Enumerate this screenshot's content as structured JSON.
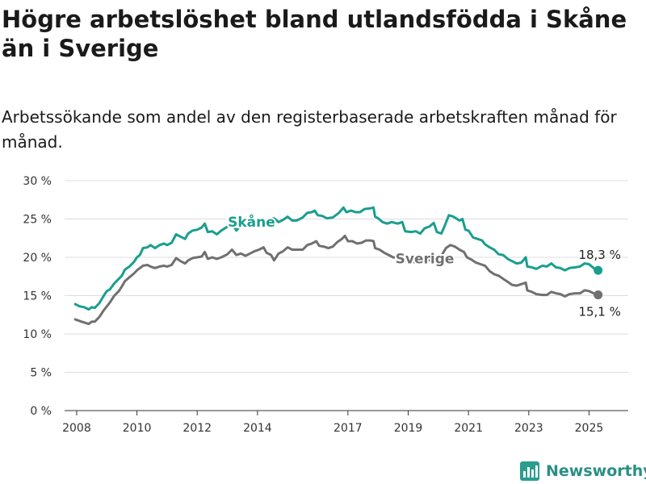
{
  "header": {
    "title": "Högre arbetslöshet bland utlandsfödda i Skåne än i Sverige",
    "subtitle": "Arbetssökande som andel av den registerbaserade arbetskraften månad för månad."
  },
  "brand": {
    "name": "Newsworthy",
    "icon": "bar-chart-icon",
    "color": "#2a8f84"
  },
  "chart_data": {
    "type": "line",
    "title": "Högre arbetslöshet bland utlandsfödda i Skåne än i Sverige",
    "subtitle": "Arbetssökande som andel av den registerbaserade arbetskraften månad för månad.",
    "xlabel": "",
    "ylabel": "",
    "xlim": [
      2007.6,
      2026.3
    ],
    "ylim": [
      0,
      30
    ],
    "x_ticks": [
      2008,
      2010,
      2012,
      2014,
      2017,
      2019,
      2021,
      2023,
      2025
    ],
    "y_ticks": [
      {
        "value": 0,
        "label": "0 %"
      },
      {
        "value": 5,
        "label": "5 %"
      },
      {
        "value": 10,
        "label": "10 %"
      },
      {
        "value": 15,
        "label": "15 %"
      },
      {
        "value": 20,
        "label": "20 %"
      },
      {
        "value": 25,
        "label": "25 %"
      },
      {
        "value": 30,
        "label": "30 %"
      }
    ],
    "grid": "horizontal",
    "series": [
      {
        "name": "Skåne",
        "color": "#1a9e8f",
        "end_label": "18,3 %",
        "points": [
          [
            2007.95,
            13.9
          ],
          [
            2008.1,
            13.6
          ],
          [
            2008.25,
            13.5
          ],
          [
            2008.4,
            13.2
          ],
          [
            2008.5,
            13.5
          ],
          [
            2008.6,
            13.4
          ],
          [
            2008.75,
            14.0
          ],
          [
            2008.9,
            15.0
          ],
          [
            2009.0,
            15.6
          ],
          [
            2009.1,
            15.8
          ],
          [
            2009.25,
            16.6
          ],
          [
            2009.4,
            17.2
          ],
          [
            2009.5,
            17.6
          ],
          [
            2009.6,
            18.4
          ],
          [
            2009.75,
            18.8
          ],
          [
            2009.9,
            19.4
          ],
          [
            2010.0,
            20.0
          ],
          [
            2010.1,
            20.3
          ],
          [
            2010.2,
            21.2
          ],
          [
            2010.35,
            21.3
          ],
          [
            2010.45,
            21.6
          ],
          [
            2010.6,
            21.2
          ],
          [
            2010.75,
            21.6
          ],
          [
            2010.9,
            21.8
          ],
          [
            2011.0,
            21.6
          ],
          [
            2011.15,
            21.9
          ],
          [
            2011.3,
            23.0
          ],
          [
            2011.45,
            22.7
          ],
          [
            2011.6,
            22.4
          ],
          [
            2011.7,
            23.1
          ],
          [
            2011.85,
            23.5
          ],
          [
            2012.0,
            23.6
          ],
          [
            2012.15,
            23.9
          ],
          [
            2012.25,
            24.4
          ],
          [
            2012.35,
            23.3
          ],
          [
            2012.5,
            23.4
          ],
          [
            2012.65,
            23.0
          ],
          [
            2012.8,
            23.5
          ],
          [
            2013.0,
            24.0
          ],
          [
            2013.15,
            24.4
          ],
          [
            2013.3,
            23.5
          ],
          [
            2013.4,
            24.0
          ],
          [
            2013.5,
            24.4
          ],
          [
            2013.6,
            24.2
          ],
          [
            2013.75,
            24.1
          ],
          [
            2013.9,
            24.8
          ],
          [
            2014.05,
            25.0
          ],
          [
            2014.2,
            24.6
          ],
          [
            2014.35,
            24.9
          ],
          [
            2014.55,
            25.1
          ],
          [
            2014.7,
            24.6
          ],
          [
            2014.85,
            24.9
          ],
          [
            2015.0,
            25.3
          ],
          [
            2015.15,
            24.8
          ],
          [
            2015.3,
            24.8
          ],
          [
            2015.5,
            25.2
          ],
          [
            2015.65,
            25.8
          ],
          [
            2015.8,
            25.9
          ],
          [
            2015.9,
            26.1
          ],
          [
            2016.0,
            25.5
          ],
          [
            2016.15,
            25.4
          ],
          [
            2016.3,
            25.1
          ],
          [
            2016.5,
            25.2
          ],
          [
            2016.7,
            25.8
          ],
          [
            2016.85,
            26.5
          ],
          [
            2016.95,
            25.9
          ],
          [
            2017.1,
            26.1
          ],
          [
            2017.25,
            25.9
          ],
          [
            2017.4,
            25.9
          ],
          [
            2017.55,
            26.3
          ],
          [
            2017.75,
            26.4
          ],
          [
            2017.85,
            26.5
          ],
          [
            2017.9,
            25.3
          ],
          [
            2018.0,
            25.1
          ],
          [
            2018.15,
            24.6
          ],
          [
            2018.3,
            24.4
          ],
          [
            2018.45,
            24.6
          ],
          [
            2018.65,
            24.4
          ],
          [
            2018.8,
            24.6
          ],
          [
            2018.9,
            23.4
          ],
          [
            2019.1,
            23.3
          ],
          [
            2019.25,
            23.4
          ],
          [
            2019.4,
            23.1
          ],
          [
            2019.55,
            23.8
          ],
          [
            2019.7,
            24.0
          ],
          [
            2019.85,
            24.5
          ],
          [
            2019.95,
            23.3
          ],
          [
            2020.1,
            23.1
          ],
          [
            2020.2,
            24.0
          ],
          [
            2020.35,
            25.5
          ],
          [
            2020.5,
            25.3
          ],
          [
            2020.7,
            24.8
          ],
          [
            2020.8,
            25.0
          ],
          [
            2020.9,
            23.6
          ],
          [
            2021.0,
            23.5
          ],
          [
            2021.15,
            22.6
          ],
          [
            2021.3,
            22.4
          ],
          [
            2021.45,
            22.2
          ],
          [
            2021.55,
            21.7
          ],
          [
            2021.7,
            21.3
          ],
          [
            2021.85,
            21.0
          ],
          [
            2022.0,
            20.4
          ],
          [
            2022.15,
            20.3
          ],
          [
            2022.3,
            19.8
          ],
          [
            2022.45,
            19.5
          ],
          [
            2022.6,
            19.2
          ],
          [
            2022.75,
            19.3
          ],
          [
            2022.9,
            20.0
          ],
          [
            2022.95,
            18.8
          ],
          [
            2023.1,
            18.7
          ],
          [
            2023.25,
            18.5
          ],
          [
            2023.45,
            18.9
          ],
          [
            2023.6,
            18.8
          ],
          [
            2023.75,
            19.2
          ],
          [
            2023.9,
            18.7
          ],
          [
            2024.05,
            18.6
          ],
          [
            2024.2,
            18.3
          ],
          [
            2024.35,
            18.6
          ],
          [
            2024.55,
            18.7
          ],
          [
            2024.7,
            18.8
          ],
          [
            2024.85,
            19.2
          ],
          [
            2025.0,
            19.1
          ],
          [
            2025.15,
            18.6
          ],
          [
            2025.3,
            18.3
          ]
        ]
      },
      {
        "name": "Sverige",
        "color": "#707070",
        "end_label": "15,1 %",
        "points": [
          [
            2007.95,
            11.9
          ],
          [
            2008.1,
            11.7
          ],
          [
            2008.25,
            11.5
          ],
          [
            2008.4,
            11.3
          ],
          [
            2008.5,
            11.6
          ],
          [
            2008.6,
            11.6
          ],
          [
            2008.75,
            12.2
          ],
          [
            2008.9,
            13.1
          ],
          [
            2009.0,
            13.6
          ],
          [
            2009.1,
            14.1
          ],
          [
            2009.25,
            15.0
          ],
          [
            2009.4,
            15.6
          ],
          [
            2009.5,
            16.2
          ],
          [
            2009.6,
            16.9
          ],
          [
            2009.75,
            17.4
          ],
          [
            2009.9,
            17.9
          ],
          [
            2010.0,
            18.3
          ],
          [
            2010.1,
            18.6
          ],
          [
            2010.2,
            18.9
          ],
          [
            2010.35,
            19.0
          ],
          [
            2010.45,
            18.8
          ],
          [
            2010.6,
            18.6
          ],
          [
            2010.75,
            18.8
          ],
          [
            2010.9,
            18.9
          ],
          [
            2011.0,
            18.8
          ],
          [
            2011.15,
            19.0
          ],
          [
            2011.3,
            19.9
          ],
          [
            2011.45,
            19.5
          ],
          [
            2011.6,
            19.2
          ],
          [
            2011.7,
            19.6
          ],
          [
            2011.85,
            19.9
          ],
          [
            2012.0,
            20.0
          ],
          [
            2012.15,
            20.1
          ],
          [
            2012.25,
            20.7
          ],
          [
            2012.35,
            19.8
          ],
          [
            2012.5,
            20.0
          ],
          [
            2012.65,
            19.8
          ],
          [
            2012.8,
            20.0
          ],
          [
            2013.0,
            20.4
          ],
          [
            2013.15,
            21.0
          ],
          [
            2013.3,
            20.3
          ],
          [
            2013.45,
            20.5
          ],
          [
            2013.6,
            20.2
          ],
          [
            2013.75,
            20.5
          ],
          [
            2013.9,
            20.8
          ],
          [
            2014.05,
            21.0
          ],
          [
            2014.2,
            21.3
          ],
          [
            2014.3,
            20.6
          ],
          [
            2014.45,
            20.3
          ],
          [
            2014.55,
            19.6
          ],
          [
            2014.7,
            20.5
          ],
          [
            2014.85,
            20.8
          ],
          [
            2015.0,
            21.3
          ],
          [
            2015.15,
            21.0
          ],
          [
            2015.35,
            21.0
          ],
          [
            2015.5,
            21.0
          ],
          [
            2015.65,
            21.6
          ],
          [
            2015.8,
            21.8
          ],
          [
            2015.95,
            22.1
          ],
          [
            2016.05,
            21.5
          ],
          [
            2016.2,
            21.4
          ],
          [
            2016.35,
            21.2
          ],
          [
            2016.5,
            21.4
          ],
          [
            2016.65,
            22.0
          ],
          [
            2016.8,
            22.4
          ],
          [
            2016.9,
            22.8
          ],
          [
            2017.0,
            22.1
          ],
          [
            2017.15,
            22.1
          ],
          [
            2017.3,
            21.8
          ],
          [
            2017.45,
            21.9
          ],
          [
            2017.6,
            22.2
          ],
          [
            2017.75,
            22.2
          ],
          [
            2017.85,
            22.1
          ],
          [
            2017.9,
            21.2
          ],
          [
            2018.05,
            21.0
          ],
          [
            2018.2,
            20.6
          ],
          [
            2018.35,
            20.3
          ],
          [
            2018.5,
            20.0
          ],
          [
            2018.65,
            19.9
          ],
          [
            2018.8,
            19.8
          ],
          [
            2018.95,
            19.5
          ],
          [
            2019.1,
            19.5
          ],
          [
            2019.25,
            19.3
          ],
          [
            2019.4,
            19.2
          ],
          [
            2019.55,
            19.5
          ],
          [
            2019.7,
            19.6
          ],
          [
            2019.85,
            20.0
          ],
          [
            2020.0,
            20.0
          ],
          [
            2020.1,
            20.2
          ],
          [
            2020.25,
            21.2
          ],
          [
            2020.4,
            21.6
          ],
          [
            2020.55,
            21.4
          ],
          [
            2020.7,
            21.0
          ],
          [
            2020.85,
            20.7
          ],
          [
            2020.95,
            20.0
          ],
          [
            2021.1,
            19.7
          ],
          [
            2021.25,
            19.3
          ],
          [
            2021.4,
            19.1
          ],
          [
            2021.55,
            18.9
          ],
          [
            2021.7,
            18.2
          ],
          [
            2021.85,
            17.8
          ],
          [
            2022.0,
            17.6
          ],
          [
            2022.15,
            17.2
          ],
          [
            2022.3,
            16.8
          ],
          [
            2022.45,
            16.4
          ],
          [
            2022.6,
            16.3
          ],
          [
            2022.75,
            16.5
          ],
          [
            2022.9,
            16.7
          ],
          [
            2022.95,
            15.7
          ],
          [
            2023.1,
            15.5
          ],
          [
            2023.25,
            15.2
          ],
          [
            2023.45,
            15.1
          ],
          [
            2023.6,
            15.1
          ],
          [
            2023.75,
            15.5
          ],
          [
            2023.9,
            15.3
          ],
          [
            2024.05,
            15.2
          ],
          [
            2024.2,
            14.9
          ],
          [
            2024.35,
            15.2
          ],
          [
            2024.55,
            15.3
          ],
          [
            2024.7,
            15.3
          ],
          [
            2024.85,
            15.7
          ],
          [
            2025.0,
            15.6
          ],
          [
            2025.15,
            15.3
          ],
          [
            2025.3,
            15.1
          ]
        ]
      }
    ]
  }
}
